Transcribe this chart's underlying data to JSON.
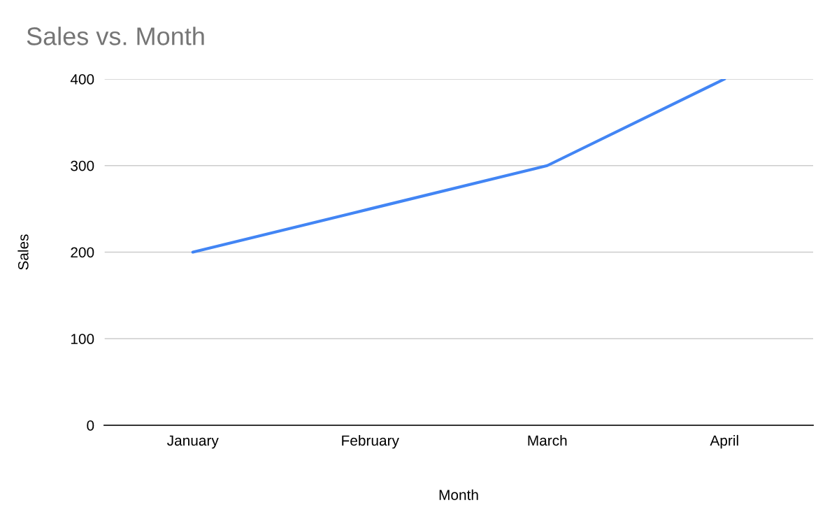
{
  "chart_data": {
    "type": "line",
    "title": "Sales vs. Month",
    "xlabel": "Month",
    "ylabel": "Sales",
    "categories": [
      "January",
      "February",
      "March",
      "April"
    ],
    "series": [
      {
        "color": "#4285f4",
        "values": [
          200,
          250,
          300,
          400
        ]
      }
    ],
    "ylim": [
      0,
      400
    ],
    "yticks": [
      0,
      100,
      200,
      300,
      400
    ],
    "grid": "y",
    "marker": "none",
    "line_style": "solid"
  }
}
